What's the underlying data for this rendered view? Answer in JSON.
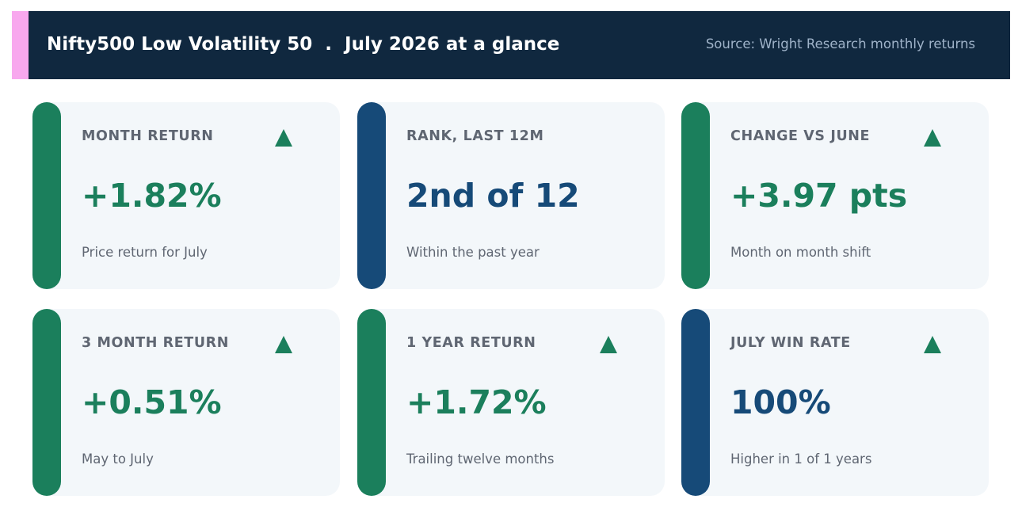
{
  "header": {
    "title": "Nifty500 Low Volatility 50  .  July 2026 at a glance",
    "source": "Source: Wright Research monthly returns",
    "accent_color": "#f8a8ee",
    "background_color": "#10283f"
  },
  "colors": {
    "positive": "#1b7f5c",
    "neutral": "#164a78",
    "card_background": "#f3f7fa",
    "label": "#5f6672"
  },
  "cards": [
    {
      "label": "MONTH RETURN",
      "value": "+1.82%",
      "note": "Price return for July",
      "tone": "positive",
      "arrow": "up-arrow-icon"
    },
    {
      "label": "RANK, LAST 12M",
      "value": "2nd of 12",
      "note": "Within the past year",
      "tone": "neutral",
      "arrow": ""
    },
    {
      "label": "CHANGE VS JUNE",
      "value": "+3.97 pts",
      "note": "Month on month shift",
      "tone": "positive",
      "arrow": "up-arrow-icon"
    },
    {
      "label": "3 MONTH RETURN",
      "value": "+0.51%",
      "note": "May to July",
      "tone": "positive",
      "arrow": "up-arrow-icon"
    },
    {
      "label": "1 YEAR RETURN",
      "value": "+1.72%",
      "note": "Trailing twelve months",
      "tone": "positive",
      "arrow": "up-arrow-icon"
    },
    {
      "label": "JULY WIN RATE",
      "value": "100%",
      "note": "Higher in 1 of 1 years",
      "tone": "neutral",
      "arrow": "up-arrow-icon"
    }
  ]
}
